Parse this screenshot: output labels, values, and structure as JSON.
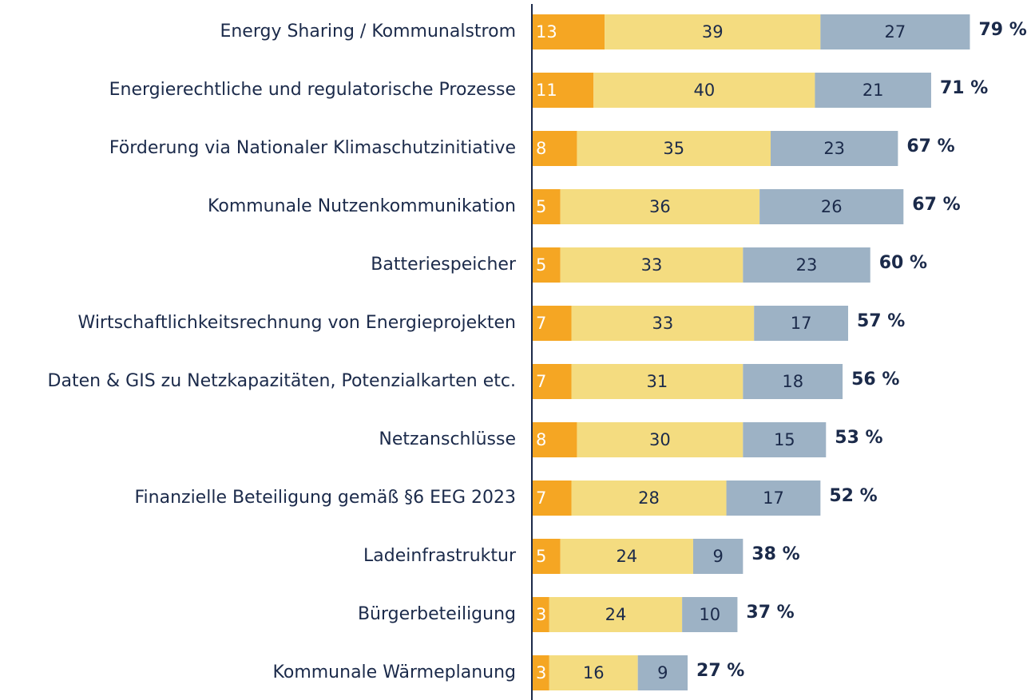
{
  "chart_data": {
    "type": "stacked-bar-horizontal",
    "categories": [
      "Energy Sharing / Kommunalstrom",
      "Energierechtliche und regulatorische Prozesse",
      "Förderung via Nationaler Klimaschutzinitiative",
      "Kommunale Nutzenkommunikation",
      "Batteriespeicher",
      "Wirtschaftlichkeitsrechnung von Energieprojekten",
      "Daten & GIS zu Netzkapazitäten, Potenzialkarten etc.",
      "Netzanschlüsse",
      "Finanzielle Beteiligung gemäß §6 EEG 2023",
      "Ladeinfrastruktur",
      "Bürgerbeteiligung",
      "Kommunale Wärmeplanung"
    ],
    "series": [
      {
        "color": "#f5a623",
        "values": [
          13,
          11,
          8,
          5,
          5,
          7,
          7,
          8,
          7,
          5,
          3,
          3
        ]
      },
      {
        "color": "#f4dc80",
        "values": [
          39,
          40,
          35,
          36,
          33,
          33,
          31,
          30,
          28,
          24,
          24,
          16
        ]
      },
      {
        "color": "#9db2c5",
        "values": [
          27,
          21,
          23,
          26,
          23,
          17,
          18,
          15,
          17,
          9,
          10,
          9
        ]
      }
    ],
    "totals": {
      "values": [
        79,
        71,
        67,
        67,
        60,
        57,
        56,
        53,
        52,
        38,
        37,
        27
      ],
      "value_labels": [
        "79 %",
        "71 %",
        "67 %",
        "67 %",
        "60 %",
        "57 %",
        "56 %",
        "53 %",
        "52 %",
        "38 %",
        "37 %",
        "27 %"
      ]
    }
  }
}
